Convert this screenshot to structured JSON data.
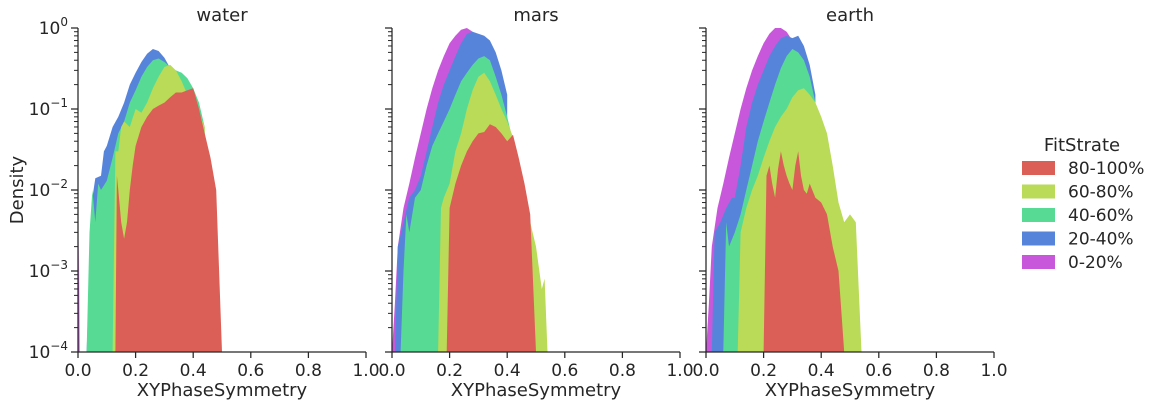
{
  "chart_data": {
    "type": "area",
    "shared_y_axis": true,
    "ylabel": "Density",
    "yscale": "log",
    "ylim": [
      0.0001,
      1
    ],
    "y_tick_labels": [
      {
        "value": 0.0001,
        "base": "10",
        "exp": "−4"
      },
      {
        "value": 0.001,
        "base": "10",
        "exp": "−3"
      },
      {
        "value": 0.01,
        "base": "10",
        "exp": "−2"
      },
      {
        "value": 0.1,
        "base": "10",
        "exp": "−1"
      },
      {
        "value": 1,
        "base": "10",
        "exp": "0"
      }
    ],
    "xlim": [
      0,
      1
    ],
    "x_ticks": [
      0.0,
      0.2,
      0.4,
      0.6,
      0.8,
      1.0
    ],
    "x_tick_labels": [
      "0.0",
      "0.2",
      "0.4",
      "0.6",
      "0.8",
      "1.0"
    ],
    "legend": {
      "title": "FitStrate",
      "placement": "right",
      "entries": [
        "80-100%",
        "60-80%",
        "40-60%",
        "20-40%",
        "0-20%"
      ]
    },
    "colors": {
      "80-100%": "#db5f57",
      "60-80%": "#b9db57",
      "40-60%": "#57db94",
      "20-40%": "#5784db",
      "0-20%": "#c957db"
    },
    "panels": [
      {
        "title": "water",
        "xlabel": "XYPhaseSymmetry",
        "series": [
          {
            "name": "0-20%",
            "x": [
              0,
              0.003,
              0.006,
              0.01
            ],
            "y": [
              0.0001,
              0.0025,
              0.0001,
              0.0001
            ]
          },
          {
            "name": "20-40%",
            "x": [
              0.03,
              0.05,
              0.06,
              0.08,
              0.09,
              0.1,
              0.12,
              0.14,
              0.16,
              0.18,
              0.2,
              0.22,
              0.24,
              0.26,
              0.28,
              0.3,
              0.32,
              0.34,
              0.36,
              0.38,
              0.4,
              0.42
            ],
            "y": [
              0.0001,
              0.008,
              0.014,
              0.015,
              0.03,
              0.035,
              0.06,
              0.08,
              0.12,
              0.2,
              0.28,
              0.38,
              0.48,
              0.55,
              0.52,
              0.43,
              0.32,
              0.25,
              0.2,
              0.18,
              0.17,
              0.1
            ]
          },
          {
            "name": "40-60%",
            "x": [
              0.03,
              0.04,
              0.05,
              0.06,
              0.07,
              0.08,
              0.1,
              0.12,
              0.14,
              0.16,
              0.18,
              0.2,
              0.22,
              0.24,
              0.26,
              0.28,
              0.3,
              0.32,
              0.34,
              0.36,
              0.38,
              0.4,
              0.42,
              0.44
            ],
            "y": [
              0.0001,
              0.003,
              0.01,
              0.004,
              0.012,
              0.01,
              0.013,
              0.025,
              0.05,
              0.07,
              0.12,
              0.17,
              0.25,
              0.33,
              0.4,
              0.42,
              0.38,
              0.33,
              0.3,
              0.28,
              0.24,
              0.18,
              0.12,
              0.06
            ]
          },
          {
            "name": "60-80%",
            "x": [
              0.12,
              0.13,
              0.14,
              0.15,
              0.16,
              0.18,
              0.2,
              0.22,
              0.24,
              0.26,
              0.28,
              0.3,
              0.32,
              0.34,
              0.36,
              0.38,
              0.4,
              0.42,
              0.44
            ],
            "y": [
              0.0001,
              0.03,
              0.03,
              0.06,
              0.07,
              0.06,
              0.1,
              0.09,
              0.12,
              0.18,
              0.25,
              0.33,
              0.35,
              0.3,
              0.22,
              0.15,
              0.12,
              0.09,
              0.06
            ]
          },
          {
            "name": "80-100%",
            "x": [
              0.13,
              0.135,
              0.14,
              0.15,
              0.16,
              0.17,
              0.18,
              0.19,
              0.2,
              0.22,
              0.24,
              0.26,
              0.28,
              0.3,
              0.32,
              0.34,
              0.36,
              0.38,
              0.4,
              0.42,
              0.44,
              0.46,
              0.48,
              0.5
            ],
            "y": [
              0.0001,
              0.015,
              0.01,
              0.004,
              0.0025,
              0.004,
              0.01,
              0.02,
              0.035,
              0.06,
              0.08,
              0.1,
              0.11,
              0.12,
              0.14,
              0.16,
              0.16,
              0.17,
              0.18,
              0.1,
              0.05,
              0.025,
              0.01,
              0.0001
            ]
          }
        ]
      },
      {
        "title": "mars",
        "xlabel": "XYPhaseSymmetry",
        "series": [
          {
            "name": "0-20%",
            "x": [
              0,
              0.01,
              0.02,
              0.04,
              0.06,
              0.08,
              0.1,
              0.12,
              0.14,
              0.16,
              0.18,
              0.2,
              0.22,
              0.24,
              0.26,
              0.28,
              0.3,
              0.32
            ],
            "y": [
              0.0001,
              0.0004,
              0.002,
              0.006,
              0.012,
              0.025,
              0.05,
              0.1,
              0.18,
              0.3,
              0.45,
              0.65,
              0.8,
              0.95,
              1.0,
              0.9,
              0.7,
              0.5
            ]
          },
          {
            "name": "20-40%",
            "x": [
              0.01,
              0.02,
              0.04,
              0.06,
              0.08,
              0.1,
              0.12,
              0.14,
              0.16,
              0.18,
              0.2,
              0.22,
              0.24,
              0.26,
              0.28,
              0.3,
              0.32,
              0.34,
              0.36,
              0.38,
              0.4
            ],
            "y": [
              0.0001,
              0.002,
              0.004,
              0.008,
              0.01,
              0.015,
              0.03,
              0.06,
              0.12,
              0.2,
              0.3,
              0.45,
              0.65,
              0.85,
              0.9,
              0.85,
              0.8,
              0.7,
              0.5,
              0.3,
              0.15
            ]
          },
          {
            "name": "40-60%",
            "x": [
              0.03,
              0.04,
              0.05,
              0.06,
              0.08,
              0.1,
              0.12,
              0.14,
              0.16,
              0.18,
              0.2,
              0.22,
              0.24,
              0.26,
              0.28,
              0.3,
              0.32,
              0.34,
              0.36,
              0.38,
              0.4,
              0.42,
              0.44,
              0.46,
              0.48,
              0.5,
              0.52
            ],
            "y": [
              0.0001,
              0.001,
              0.005,
              0.003,
              0.008,
              0.01,
              0.02,
              0.035,
              0.05,
              0.07,
              0.1,
              0.15,
              0.22,
              0.28,
              0.35,
              0.42,
              0.45,
              0.4,
              0.25,
              0.15,
              0.08,
              0.04,
              0.02,
              0.006,
              0.003,
              0.001,
              0.0001
            ]
          },
          {
            "name": "60-80%",
            "x": [
              0.16,
              0.17,
              0.18,
              0.2,
              0.22,
              0.24,
              0.26,
              0.28,
              0.3,
              0.32,
              0.34,
              0.36,
              0.38,
              0.4,
              0.42,
              0.44,
              0.46,
              0.48,
              0.5,
              0.52,
              0.53,
              0.54
            ],
            "y": [
              0.0001,
              0.006,
              0.008,
              0.012,
              0.03,
              0.05,
              0.1,
              0.17,
              0.25,
              0.28,
              0.22,
              0.15,
              0.1,
              0.07,
              0.045,
              0.02,
              0.008,
              0.004,
              0.002,
              0.0006,
              0.0008,
              0.0001
            ]
          },
          {
            "name": "80-100%",
            "x": [
              0.19,
              0.2,
              0.22,
              0.24,
              0.26,
              0.28,
              0.3,
              0.32,
              0.34,
              0.36,
              0.38,
              0.4,
              0.42,
              0.44,
              0.46,
              0.48,
              0.5
            ],
            "y": [
              0.0001,
              0.006,
              0.012,
              0.02,
              0.03,
              0.04,
              0.05,
              0.052,
              0.065,
              0.06,
              0.05,
              0.04,
              0.048,
              0.025,
              0.012,
              0.005,
              0.0001
            ]
          }
        ]
      },
      {
        "title": "earth",
        "xlabel": "XYPhaseSymmetry",
        "series": [
          {
            "name": "0-20%",
            "x": [
              0,
              0.01,
              0.02,
              0.04,
              0.06,
              0.08,
              0.1,
              0.12,
              0.14,
              0.16,
              0.18,
              0.2,
              0.22,
              0.24,
              0.26,
              0.28,
              0.3
            ],
            "y": [
              0.0001,
              0.0004,
              0.002,
              0.006,
              0.012,
              0.025,
              0.05,
              0.1,
              0.18,
              0.3,
              0.45,
              0.65,
              0.85,
              1.0,
              1.0,
              0.9,
              0.7
            ]
          },
          {
            "name": "20-40%",
            "x": [
              0.02,
              0.03,
              0.05,
              0.07,
              0.09,
              0.1,
              0.12,
              0.14,
              0.16,
              0.18,
              0.2,
              0.22,
              0.24,
              0.26,
              0.28,
              0.3,
              0.32,
              0.34,
              0.36,
              0.38
            ],
            "y": [
              0.0001,
              0.003,
              0.004,
              0.006,
              0.008,
              0.008,
              0.02,
              0.06,
              0.12,
              0.2,
              0.3,
              0.45,
              0.6,
              0.75,
              0.8,
              0.75,
              0.8,
              0.6,
              0.35,
              0.15
            ]
          },
          {
            "name": "40-60%",
            "x": [
              0.06,
              0.07,
              0.08,
              0.1,
              0.12,
              0.14,
              0.16,
              0.18,
              0.2,
              0.22,
              0.24,
              0.26,
              0.28,
              0.3,
              0.32,
              0.34,
              0.36,
              0.38,
              0.4
            ],
            "y": [
              0.0001,
              0.004,
              0.002,
              0.003,
              0.005,
              0.01,
              0.02,
              0.04,
              0.07,
              0.12,
              0.2,
              0.32,
              0.45,
              0.55,
              0.5,
              0.4,
              0.25,
              0.12,
              0.05
            ]
          },
          {
            "name": "60-80%",
            "x": [
              0.11,
              0.12,
              0.14,
              0.16,
              0.18,
              0.2,
              0.22,
              0.24,
              0.26,
              0.28,
              0.3,
              0.32,
              0.34,
              0.36,
              0.38,
              0.4,
              0.42,
              0.44,
              0.46,
              0.48,
              0.5,
              0.52,
              0.54
            ],
            "y": [
              0.0001,
              0.003,
              0.006,
              0.01,
              0.015,
              0.025,
              0.04,
              0.06,
              0.08,
              0.1,
              0.14,
              0.17,
              0.18,
              0.15,
              0.12,
              0.08,
              0.05,
              0.02,
              0.007,
              0.004,
              0.005,
              0.004,
              0.0001
            ]
          },
          {
            "name": "80-100%",
            "x": [
              0.2,
              0.21,
              0.22,
              0.23,
              0.24,
              0.25,
              0.26,
              0.27,
              0.28,
              0.29,
              0.3,
              0.31,
              0.32,
              0.33,
              0.34,
              0.35,
              0.36,
              0.38,
              0.4,
              0.42,
              0.44,
              0.46,
              0.48
            ],
            "y": [
              0.0001,
              0.015,
              0.02,
              0.012,
              0.008,
              0.018,
              0.03,
              0.02,
              0.015,
              0.012,
              0.01,
              0.02,
              0.03,
              0.015,
              0.01,
              0.009,
              0.012,
              0.008,
              0.007,
              0.005,
              0.002,
              0.001,
              0.0001
            ]
          }
        ]
      }
    ]
  }
}
